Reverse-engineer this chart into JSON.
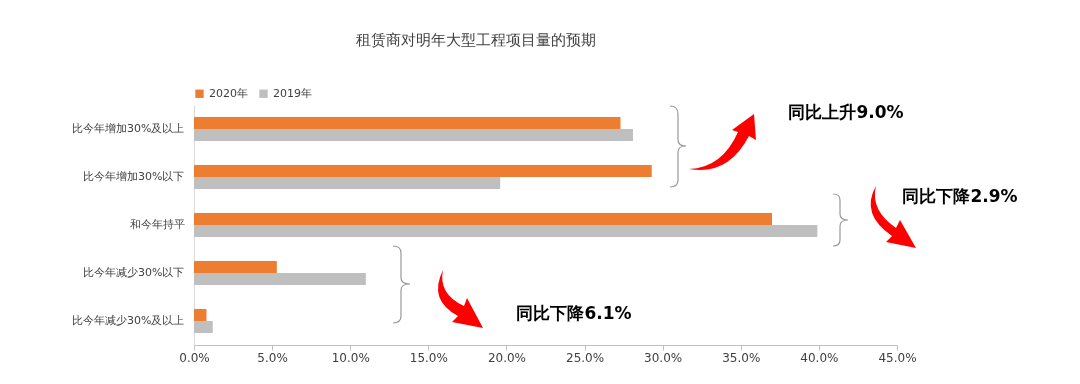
{
  "chart_data": {
    "type": "bar",
    "orientation": "horizontal",
    "title": "租赁商对明年大型工程项目量的预期",
    "categories": [
      "比今年增加30%及以上",
      "比今年增加30%以下",
      "和今年持平",
      "比今年减少30%以下",
      "比今年减少30%及以上"
    ],
    "series": [
      {
        "name": "2020年",
        "color": "#ed7d31",
        "values": [
          27.3,
          29.3,
          37.0,
          5.3,
          0.8
        ]
      },
      {
        "name": "2019年",
        "color": "#bfbfbf",
        "values": [
          28.1,
          19.6,
          39.9,
          11.0,
          1.2
        ]
      }
    ],
    "xlim": [
      0,
      45
    ],
    "xticks": [
      {
        "value": 0,
        "label": "0.0%"
      },
      {
        "value": 5,
        "label": "5.0%"
      },
      {
        "value": 10,
        "label": "10.0%"
      },
      {
        "value": 15,
        "label": "15.0%"
      },
      {
        "value": 20,
        "label": "20.0%"
      },
      {
        "value": 25,
        "label": "25.0%"
      },
      {
        "value": 30,
        "label": "30.0%"
      },
      {
        "value": 35,
        "label": "35.0%"
      },
      {
        "value": 40,
        "label": "40.0%"
      },
      {
        "value": 45,
        "label": "45.0%"
      }
    ],
    "grid": false,
    "legend": "top",
    "annotations": [
      "同比上升9.0%",
      "同比下降2.9%",
      "同比下降6.1%"
    ]
  }
}
